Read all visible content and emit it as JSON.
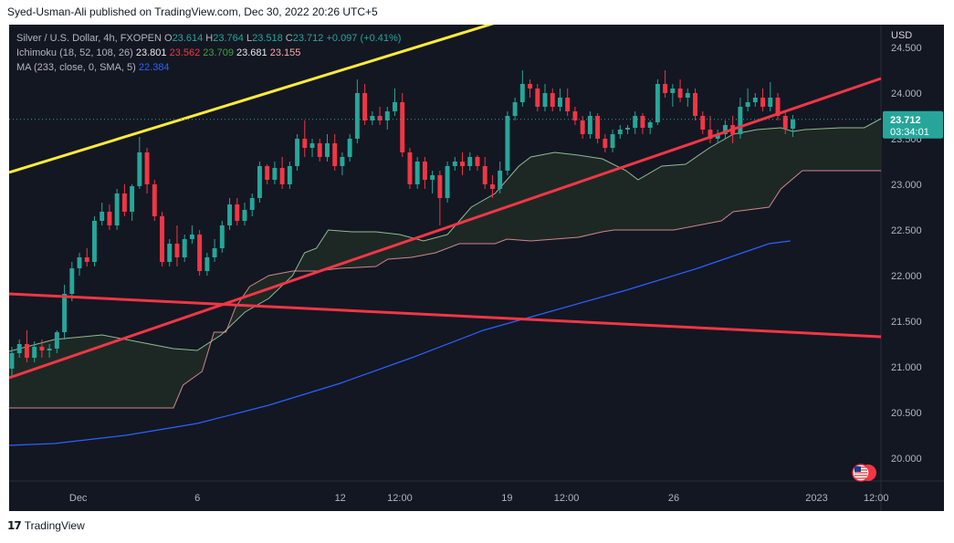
{
  "header": {
    "publisher": "Syed-Usman-Ali published on TradingView.com, Dec 30, 2022 20:26 UTC+5"
  },
  "footer": {
    "logo_text": "TradingView",
    "logo_icon": "tradingview-logo-icon"
  },
  "legend": {
    "symbol": "Silver / U.S. Dollar, 4h, FXOPEN",
    "open_label": "O",
    "open": "23.614",
    "high_label": "H",
    "high": "23.764",
    "low_label": "L",
    "low": "23.518",
    "close_label": "C",
    "close": "23.712",
    "change": "+0.097 (+0.41%)",
    "ichimoku_label": "Ichimoku (18, 52, 108, 26)",
    "ichi_v1": "23.801",
    "ichi_v2": "23.562",
    "ichi_v3": "23.709",
    "ichi_v4": "23.681",
    "ichi_v5": "23.155",
    "ma_label": "MA (233, close, 0, SMA, 5)",
    "ma_value": "22.384"
  },
  "colors": {
    "bg": "#131722",
    "up": "#26a69a",
    "down": "#f23645",
    "yellow": "#ffeb3b",
    "red": "#f23645",
    "ma": "#2962ff",
    "cloud_fill": "#1f2a26"
  },
  "price_tag": {
    "price": "23.712",
    "countdown": "03:34:01"
  },
  "flag_icon": "us-flag-icon",
  "chart_data": {
    "type": "candlestick",
    "title": "Silver / U.S. Dollar, 4h, FXOPEN",
    "currency": "USD",
    "ylim": [
      19.75,
      24.75
    ],
    "y_ticks": [
      "24.500",
      "24.000",
      "23.500",
      "23.000",
      "22.500",
      "22.000",
      "21.500",
      "21.000",
      "20.500",
      "20.000"
    ],
    "x_ticks": [
      "Dec",
      "6",
      "12",
      "12:00",
      "19",
      "12:00",
      "26",
      "2023",
      "12:00"
    ],
    "x_tick_days": [
      1,
      6,
      12,
      14.5,
      19,
      21.5,
      26,
      32,
      34.5
    ],
    "x_range_days": [
      -1.9,
      34.7
    ],
    "last_price": 23.712,
    "trendlines": [
      {
        "name": "upper-channel",
        "color": "#ffeb3b",
        "points": [
          [
            -1.9,
            23.13
          ],
          [
            22.0,
            25.05
          ]
        ]
      },
      {
        "name": "rising-support",
        "color": "#f23645",
        "points": [
          [
            -1.9,
            20.88
          ],
          [
            34.7,
            24.16
          ]
        ]
      },
      {
        "name": "falling-line",
        "color": "#f23645",
        "points": [
          [
            -1.9,
            21.8
          ],
          [
            34.7,
            21.33
          ]
        ]
      }
    ],
    "ma": {
      "name": "MA 233",
      "color": "#2962ff",
      "points": [
        [
          -1.9,
          20.14
        ],
        [
          0,
          20.16
        ],
        [
          3,
          20.25
        ],
        [
          6,
          20.38
        ],
        [
          9,
          20.58
        ],
        [
          12,
          20.82
        ],
        [
          15,
          21.1
        ],
        [
          18,
          21.4
        ],
        [
          21,
          21.62
        ],
        [
          24,
          21.84
        ],
        [
          27,
          22.08
        ],
        [
          30,
          22.35
        ],
        [
          30.9,
          22.38
        ]
      ]
    },
    "ichimoku_cloud": {
      "span_a": [
        [
          -1.9,
          21.17
        ],
        [
          0,
          21.3
        ],
        [
          2,
          21.35
        ],
        [
          4,
          21.25
        ],
        [
          5,
          21.2
        ],
        [
          6,
          21.18
        ],
        [
          7,
          21.35
        ],
        [
          8,
          21.6
        ],
        [
          9,
          21.75
        ],
        [
          10,
          22.0
        ],
        [
          10.5,
          22.25
        ],
        [
          11,
          22.3
        ],
        [
          11.5,
          22.5
        ],
        [
          12.5,
          22.48
        ],
        [
          13.5,
          22.48
        ],
        [
          14.5,
          22.45
        ],
        [
          15.5,
          22.38
        ],
        [
          16.5,
          22.45
        ],
        [
          17,
          22.6
        ],
        [
          17.5,
          22.75
        ],
        [
          18.5,
          22.9
        ],
        [
          19.5,
          23.2
        ],
        [
          20,
          23.3
        ],
        [
          21,
          23.35
        ],
        [
          22,
          23.32
        ],
        [
          23,
          23.28
        ],
        [
          24,
          23.15
        ],
        [
          24.5,
          23.05
        ],
        [
          25.5,
          23.2
        ],
        [
          26.5,
          23.22
        ],
        [
          27.5,
          23.4
        ],
        [
          28.5,
          23.55
        ],
        [
          29.5,
          23.6
        ],
        [
          30.5,
          23.62
        ],
        [
          31,
          23.58
        ],
        [
          31.5,
          23.6
        ],
        [
          33,
          23.62
        ],
        [
          34,
          23.62
        ],
        [
          34.7,
          23.72
        ]
      ],
      "span_b": [
        [
          -1.9,
          20.55
        ],
        [
          5,
          20.55
        ],
        [
          5.4,
          20.8
        ],
        [
          6.2,
          20.95
        ],
        [
          6.7,
          21.38
        ],
        [
          7.2,
          21.38
        ],
        [
          7.6,
          21.65
        ],
        [
          8.2,
          21.88
        ],
        [
          9,
          22.0
        ],
        [
          10,
          22.05
        ],
        [
          11,
          22.05
        ],
        [
          12,
          22.08
        ],
        [
          13.5,
          22.1
        ],
        [
          14,
          22.18
        ],
        [
          15,
          22.2
        ],
        [
          16,
          22.25
        ],
        [
          17,
          22.35
        ],
        [
          18,
          22.35
        ],
        [
          18.5,
          22.35
        ],
        [
          19,
          22.4
        ],
        [
          20,
          22.38
        ],
        [
          21,
          22.4
        ],
        [
          22,
          22.42
        ],
        [
          23,
          22.48
        ],
        [
          23.5,
          22.5
        ],
        [
          26,
          22.5
        ],
        [
          27,
          22.55
        ],
        [
          28,
          22.6
        ],
        [
          28.5,
          22.7
        ],
        [
          30,
          22.75
        ],
        [
          30.5,
          22.95
        ],
        [
          31.4,
          23.15
        ],
        [
          34.7,
          23.15
        ]
      ]
    },
    "candles": [
      {
        "o": 20.98,
        "h": 21.22,
        "l": 20.9,
        "c": 21.15
      },
      {
        "o": 21.15,
        "h": 21.3,
        "l": 21.1,
        "c": 21.25
      },
      {
        "o": 21.25,
        "h": 21.4,
        "l": 21.05,
        "c": 21.1
      },
      {
        "o": 21.1,
        "h": 21.28,
        "l": 21.05,
        "c": 21.22
      },
      {
        "o": 21.22,
        "h": 21.3,
        "l": 21.1,
        "c": 21.18
      },
      {
        "o": 21.18,
        "h": 21.25,
        "l": 21.1,
        "c": 21.2
      },
      {
        "o": 21.2,
        "h": 21.4,
        "l": 21.15,
        "c": 21.38
      },
      {
        "o": 21.38,
        "h": 21.9,
        "l": 21.3,
        "c": 21.8
      },
      {
        "o": 21.8,
        "h": 22.15,
        "l": 21.72,
        "c": 22.08
      },
      {
        "o": 22.08,
        "h": 22.25,
        "l": 22.0,
        "c": 22.2
      },
      {
        "o": 22.2,
        "h": 22.3,
        "l": 22.1,
        "c": 22.15
      },
      {
        "o": 22.15,
        "h": 22.65,
        "l": 22.1,
        "c": 22.6
      },
      {
        "o": 22.6,
        "h": 22.8,
        "l": 22.55,
        "c": 22.7
      },
      {
        "o": 22.7,
        "h": 22.78,
        "l": 22.5,
        "c": 22.55
      },
      {
        "o": 22.55,
        "h": 22.95,
        "l": 22.5,
        "c": 22.9
      },
      {
        "o": 22.9,
        "h": 23.0,
        "l": 22.65,
        "c": 22.7
      },
      {
        "o": 22.7,
        "h": 23.0,
        "l": 22.6,
        "c": 22.98
      },
      {
        "o": 22.98,
        "h": 23.52,
        "l": 22.95,
        "c": 23.35
      },
      {
        "o": 23.35,
        "h": 23.4,
        "l": 22.9,
        "c": 23.0
      },
      {
        "o": 23.0,
        "h": 23.05,
        "l": 22.6,
        "c": 22.65
      },
      {
        "o": 22.65,
        "h": 22.7,
        "l": 22.1,
        "c": 22.15
      },
      {
        "o": 22.15,
        "h": 22.4,
        "l": 22.1,
        "c": 22.35
      },
      {
        "o": 22.35,
        "h": 22.55,
        "l": 22.1,
        "c": 22.2
      },
      {
        "o": 22.2,
        "h": 22.45,
        "l": 22.15,
        "c": 22.4
      },
      {
        "o": 22.4,
        "h": 22.55,
        "l": 22.35,
        "c": 22.45
      },
      {
        "o": 22.45,
        "h": 22.5,
        "l": 22.0,
        "c": 22.05
      },
      {
        "o": 22.05,
        "h": 22.25,
        "l": 22.0,
        "c": 22.2
      },
      {
        "o": 22.2,
        "h": 22.4,
        "l": 22.15,
        "c": 22.3
      },
      {
        "o": 22.3,
        "h": 22.6,
        "l": 22.25,
        "c": 22.55
      },
      {
        "o": 22.55,
        "h": 22.85,
        "l": 22.5,
        "c": 22.78
      },
      {
        "o": 22.78,
        "h": 22.85,
        "l": 22.55,
        "c": 22.6
      },
      {
        "o": 22.6,
        "h": 22.8,
        "l": 22.55,
        "c": 22.72
      },
      {
        "o": 22.72,
        "h": 22.9,
        "l": 22.65,
        "c": 22.85
      },
      {
        "o": 22.85,
        "h": 23.25,
        "l": 22.8,
        "c": 23.2
      },
      {
        "o": 23.2,
        "h": 23.22,
        "l": 23.0,
        "c": 23.05
      },
      {
        "o": 23.05,
        "h": 23.25,
        "l": 23.0,
        "c": 23.18
      },
      {
        "o": 23.18,
        "h": 23.3,
        "l": 22.95,
        "c": 23.0
      },
      {
        "o": 23.0,
        "h": 23.25,
        "l": 22.95,
        "c": 23.2
      },
      {
        "o": 23.2,
        "h": 23.55,
        "l": 23.15,
        "c": 23.5
      },
      {
        "o": 23.5,
        "h": 23.7,
        "l": 23.3,
        "c": 23.4
      },
      {
        "o": 23.4,
        "h": 23.5,
        "l": 23.3,
        "c": 23.45
      },
      {
        "o": 23.45,
        "h": 23.5,
        "l": 23.25,
        "c": 23.3
      },
      {
        "o": 23.3,
        "h": 23.55,
        "l": 23.25,
        "c": 23.45
      },
      {
        "o": 23.45,
        "h": 23.55,
        "l": 23.15,
        "c": 23.2
      },
      {
        "o": 23.2,
        "h": 23.35,
        "l": 23.1,
        "c": 23.3
      },
      {
        "o": 23.3,
        "h": 23.55,
        "l": 23.25,
        "c": 23.5
      },
      {
        "o": 23.5,
        "h": 24.15,
        "l": 23.45,
        "c": 24.0
      },
      {
        "o": 24.0,
        "h": 24.1,
        "l": 23.65,
        "c": 23.7
      },
      {
        "o": 23.7,
        "h": 23.8,
        "l": 23.65,
        "c": 23.75
      },
      {
        "o": 23.75,
        "h": 23.85,
        "l": 23.65,
        "c": 23.7
      },
      {
        "o": 23.7,
        "h": 23.85,
        "l": 23.6,
        "c": 23.8
      },
      {
        "o": 23.8,
        "h": 24.05,
        "l": 23.75,
        "c": 23.9
      },
      {
        "o": 23.9,
        "h": 24.0,
        "l": 23.3,
        "c": 23.35
      },
      {
        "o": 23.35,
        "h": 23.4,
        "l": 22.95,
        "c": 23.0
      },
      {
        "o": 23.0,
        "h": 23.3,
        "l": 22.95,
        "c": 23.25
      },
      {
        "o": 23.25,
        "h": 23.3,
        "l": 22.95,
        "c": 23.05
      },
      {
        "o": 23.05,
        "h": 23.15,
        "l": 22.9,
        "c": 23.1
      },
      {
        "o": 23.1,
        "h": 23.15,
        "l": 22.55,
        "c": 22.85
      },
      {
        "o": 22.85,
        "h": 23.25,
        "l": 22.8,
        "c": 23.2
      },
      {
        "o": 23.2,
        "h": 23.3,
        "l": 23.15,
        "c": 23.25
      },
      {
        "o": 23.25,
        "h": 23.35,
        "l": 23.1,
        "c": 23.2
      },
      {
        "o": 23.2,
        "h": 23.35,
        "l": 23.15,
        "c": 23.3
      },
      {
        "o": 23.3,
        "h": 23.32,
        "l": 23.15,
        "c": 23.2
      },
      {
        "o": 23.2,
        "h": 23.3,
        "l": 22.95,
        "c": 23.0
      },
      {
        "o": 23.0,
        "h": 23.1,
        "l": 22.85,
        "c": 22.95
      },
      {
        "o": 22.95,
        "h": 23.25,
        "l": 22.9,
        "c": 23.15
      },
      {
        "o": 23.15,
        "h": 23.8,
        "l": 23.1,
        "c": 23.75
      },
      {
        "o": 23.75,
        "h": 23.95,
        "l": 23.7,
        "c": 23.9
      },
      {
        "o": 23.9,
        "h": 24.25,
        "l": 23.85,
        "c": 24.1
      },
      {
        "o": 24.1,
        "h": 24.15,
        "l": 23.95,
        "c": 24.05
      },
      {
        "o": 24.05,
        "h": 24.1,
        "l": 23.8,
        "c": 23.85
      },
      {
        "o": 23.85,
        "h": 24.1,
        "l": 23.8,
        "c": 24.0
      },
      {
        "o": 24.0,
        "h": 24.05,
        "l": 23.8,
        "c": 23.85
      },
      {
        "o": 23.85,
        "h": 24.05,
        "l": 23.8,
        "c": 23.95
      },
      {
        "o": 23.95,
        "h": 24.05,
        "l": 23.75,
        "c": 23.8
      },
      {
        "o": 23.8,
        "h": 23.85,
        "l": 23.65,
        "c": 23.7
      },
      {
        "o": 23.7,
        "h": 23.75,
        "l": 23.5,
        "c": 23.55
      },
      {
        "o": 23.55,
        "h": 23.8,
        "l": 23.5,
        "c": 23.75
      },
      {
        "o": 23.75,
        "h": 23.78,
        "l": 23.45,
        "c": 23.5
      },
      {
        "o": 23.5,
        "h": 23.55,
        "l": 23.35,
        "c": 23.4
      },
      {
        "o": 23.4,
        "h": 23.6,
        "l": 23.35,
        "c": 23.55
      },
      {
        "o": 23.55,
        "h": 23.65,
        "l": 23.5,
        "c": 23.6
      },
      {
        "o": 23.6,
        "h": 23.65,
        "l": 23.55,
        "c": 23.62
      },
      {
        "o": 23.62,
        "h": 23.8,
        "l": 23.55,
        "c": 23.75
      },
      {
        "o": 23.75,
        "h": 23.78,
        "l": 23.55,
        "c": 23.62
      },
      {
        "o": 23.62,
        "h": 23.7,
        "l": 23.55,
        "c": 23.68
      },
      {
        "o": 23.68,
        "h": 24.15,
        "l": 23.65,
        "c": 24.1
      },
      {
        "o": 24.1,
        "h": 24.25,
        "l": 23.95,
        "c": 24.0
      },
      {
        "o": 24.0,
        "h": 24.1,
        "l": 23.85,
        "c": 24.05
      },
      {
        "o": 24.05,
        "h": 24.15,
        "l": 23.9,
        "c": 23.95
      },
      {
        "o": 23.95,
        "h": 24.05,
        "l": 23.85,
        "c": 24.0
      },
      {
        "o": 24.0,
        "h": 24.05,
        "l": 23.7,
        "c": 23.75
      },
      {
        "o": 23.75,
        "h": 23.8,
        "l": 23.55,
        "c": 23.6
      },
      {
        "o": 23.6,
        "h": 23.75,
        "l": 23.45,
        "c": 23.5
      },
      {
        "o": 23.5,
        "h": 23.6,
        "l": 23.45,
        "c": 23.55
      },
      {
        "o": 23.55,
        "h": 23.7,
        "l": 23.5,
        "c": 23.65
      },
      {
        "o": 23.65,
        "h": 23.75,
        "l": 23.45,
        "c": 23.55
      },
      {
        "o": 23.55,
        "h": 23.95,
        "l": 23.5,
        "c": 23.85
      },
      {
        "o": 23.85,
        "h": 24.05,
        "l": 23.8,
        "c": 23.9
      },
      {
        "o": 23.9,
        "h": 24.0,
        "l": 23.85,
        "c": 23.95
      },
      {
        "o": 23.95,
        "h": 24.05,
        "l": 23.8,
        "c": 23.85
      },
      {
        "o": 23.85,
        "h": 24.12,
        "l": 23.8,
        "c": 23.95
      },
      {
        "o": 23.95,
        "h": 24.0,
        "l": 23.7,
        "c": 23.75
      },
      {
        "o": 23.75,
        "h": 23.8,
        "l": 23.55,
        "c": 23.61
      },
      {
        "o": 23.61,
        "h": 23.76,
        "l": 23.52,
        "c": 23.71
      }
    ]
  }
}
